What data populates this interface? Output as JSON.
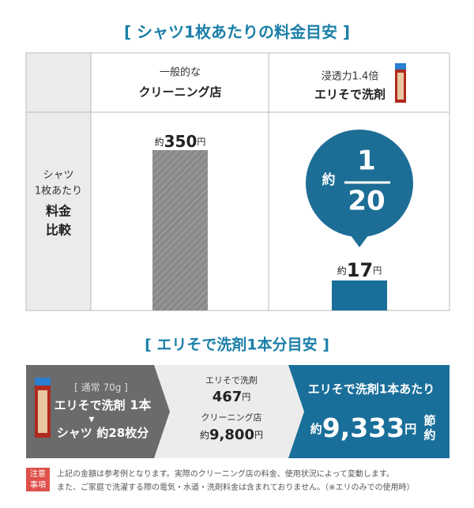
{
  "title": "[ シャツ1枚あたりの料金目安 ]",
  "table": {
    "row_header": [
      "シャツ",
      "1枚あたり",
      "料金",
      "比較"
    ],
    "columns": [
      {
        "sub": "一般的な",
        "name": "クリーニング店",
        "prefix": "約",
        "value": 350,
        "unit": "円"
      },
      {
        "sub": "浸透力1.4倍",
        "name": "エリそで洗剤",
        "prefix": "約",
        "value": 17,
        "unit": "円"
      }
    ],
    "bubble": {
      "prefix": "約",
      "numerator": 1,
      "denominator": 20
    }
  },
  "section2": {
    "title": "[ エリそで洗剤1本分目安 ]",
    "left": {
      "note": "[ 通常 70g ]",
      "line1": "エリそで洗剤",
      "line1_count": "1本",
      "arrow": "▼",
      "line2": "シャツ",
      "line2_count": "約28枚分"
    },
    "middle": {
      "item1": "エリそで洗剤",
      "item1_price": "467",
      "item1_unit": "円",
      "item2": "クリーニング店",
      "item2_prefix": "約",
      "item2_price": "9,800",
      "item2_unit": "円"
    },
    "right": {
      "heading": "エリそで洗剤1本あたり",
      "prefix": "約",
      "amount": "9,333",
      "unit": "円",
      "suffix": [
        "節",
        "約"
      ]
    }
  },
  "notice": {
    "badge": [
      "注意",
      "事項"
    ],
    "lines": [
      "上記の金額は参考例となります。実際のクリーニング店の料金、使用状況によって変動します。",
      "また、ご家庭で洗濯する際の電気・水道・洗剤料金は含まれておりません。（※エリのみでの使用時）"
    ]
  }
}
